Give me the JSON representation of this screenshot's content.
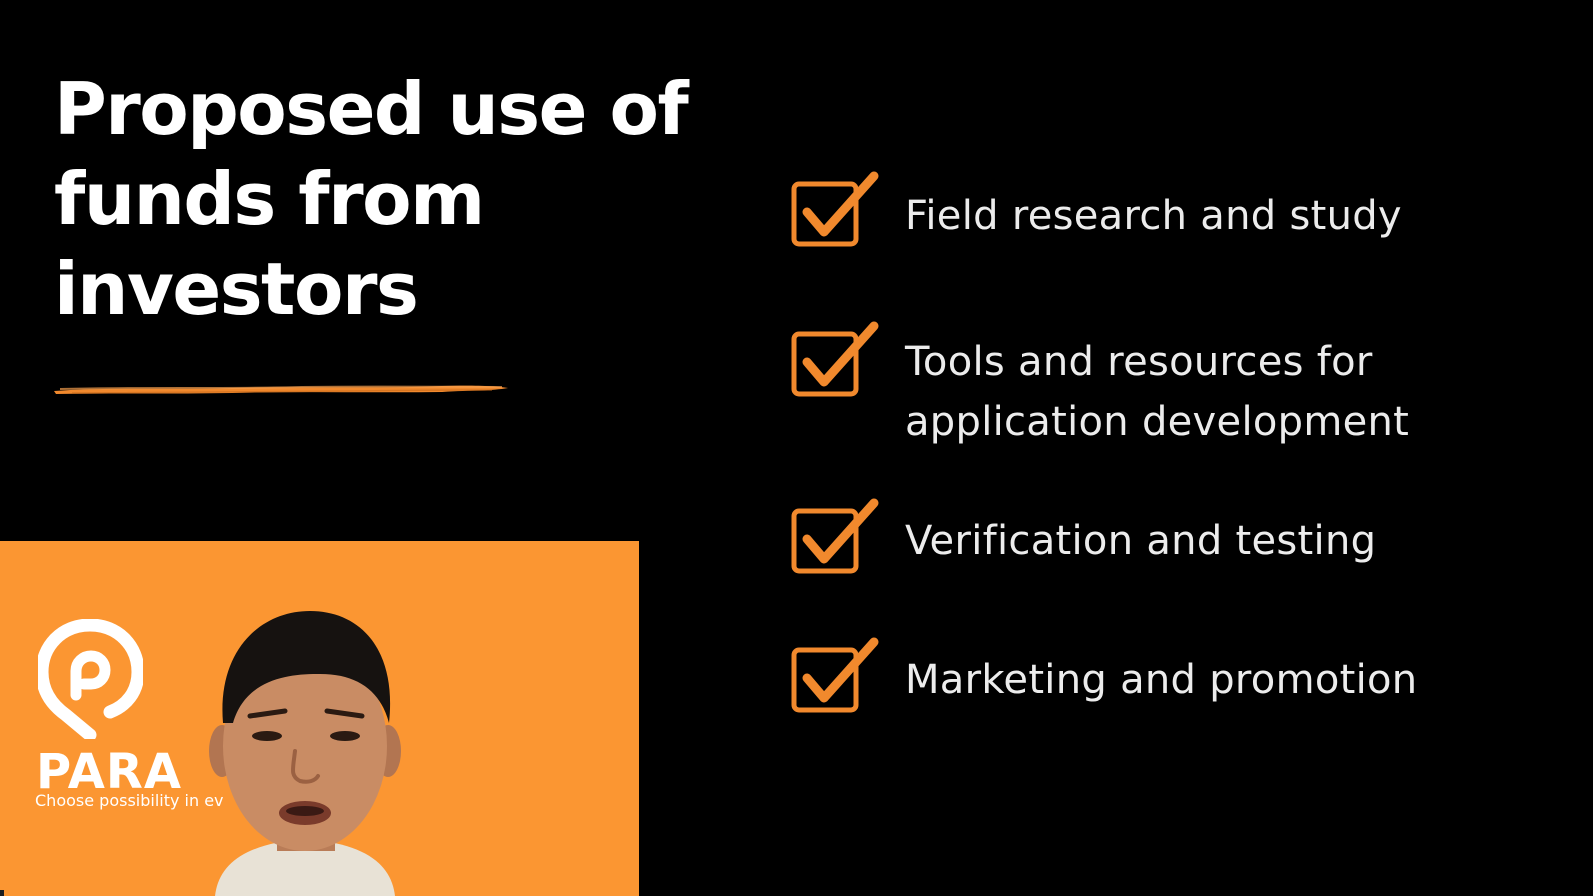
{
  "slide": {
    "title_lines": [
      "Proposed use of",
      "funds from",
      "investors"
    ],
    "accent_color": "#f1892d",
    "items": [
      {
        "icon": "checkbox-checked-icon",
        "lines": [
          "Field research and study"
        ]
      },
      {
        "icon": "checkbox-checked-icon",
        "lines": [
          "Tools and resources for",
          "application development"
        ]
      },
      {
        "icon": "checkbox-checked-icon",
        "lines": [
          "Verification and testing"
        ]
      },
      {
        "icon": "checkbox-checked-icon",
        "lines": [
          "Marketing and promotion"
        ]
      }
    ]
  },
  "webcam": {
    "background_color": "#fb9632",
    "brand_name": "PARA",
    "tagline_visible": "Choose possibility in ev",
    "participant_name": ""
  }
}
